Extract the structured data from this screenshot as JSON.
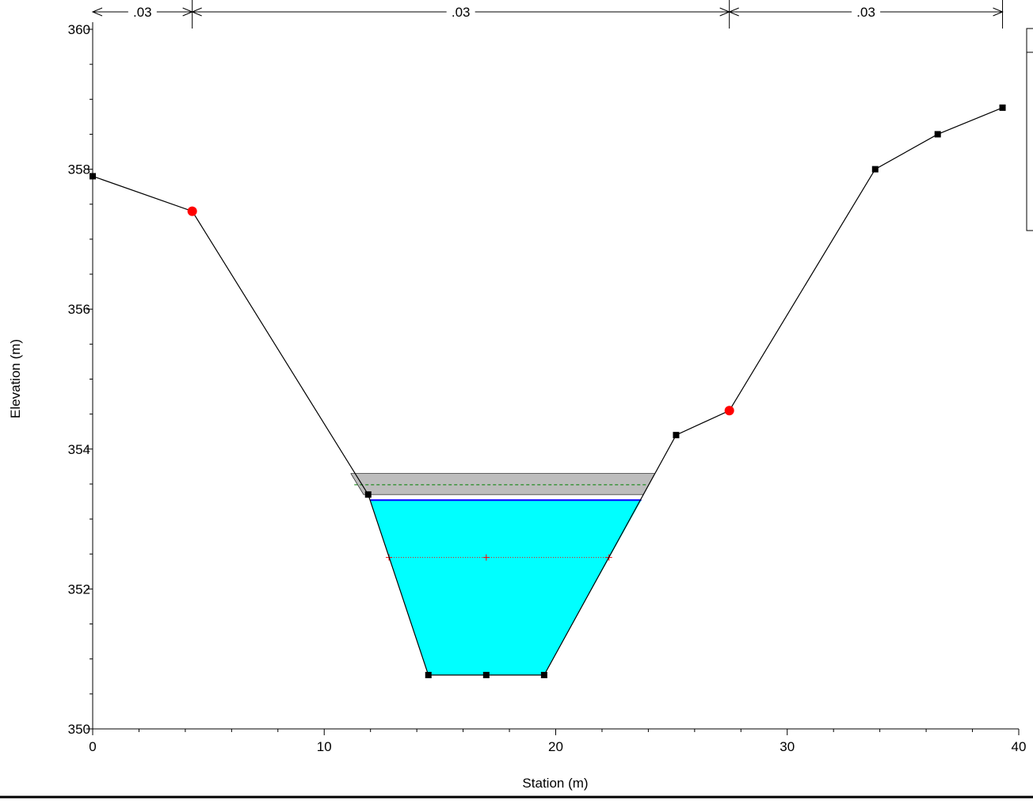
{
  "chart_data": {
    "type": "line",
    "xlabel": "Station (m)",
    "ylabel": "Elevation (m)",
    "xlim": [
      0,
      40
    ],
    "ylim": [
      350,
      360
    ],
    "x_ticks": [
      0,
      10,
      20,
      30,
      40
    ],
    "y_ticks": [
      350,
      352,
      354,
      356,
      358,
      360
    ],
    "ground_profile": [
      [
        0.0,
        357.9
      ],
      [
        4.3,
        357.4
      ],
      [
        11.9,
        353.35
      ],
      [
        14.5,
        350.77
      ],
      [
        17.0,
        350.77
      ],
      [
        19.5,
        350.77
      ],
      [
        25.2,
        354.2
      ],
      [
        27.5,
        354.55
      ],
      [
        33.8,
        358.0
      ],
      [
        36.5,
        358.5
      ],
      [
        39.3,
        358.88
      ]
    ],
    "bank_stations": [
      [
        4.3,
        357.4
      ],
      [
        27.5,
        354.55
      ]
    ],
    "water_surface": {
      "elevation": 353.27,
      "left_x": 12.0,
      "right_x": 23.7,
      "color": "#00ffff"
    },
    "energy_band": {
      "bottom": 353.35,
      "top": 353.65
    },
    "energy_grade_line": 353.49,
    "critical_depth_line": {
      "elevation": 352.45,
      "markers_x": [
        12.8,
        17.0,
        22.3
      ]
    },
    "mannings_n": [
      {
        "from": 0,
        "to": 4.3,
        "label": ".03"
      },
      {
        "from": 4.3,
        "to": 27.5,
        "label": ".03"
      },
      {
        "from": 27.5,
        "to": 39.3,
        "label": ".03"
      }
    ],
    "colors": {
      "ground": "#000000",
      "bank": "#ff0000",
      "water": "#00ffff",
      "water_line": "#0000ff",
      "egl": "#008000",
      "band": "#bdbdbd",
      "crit": "#ff0000"
    },
    "legend_placement": "right"
  }
}
